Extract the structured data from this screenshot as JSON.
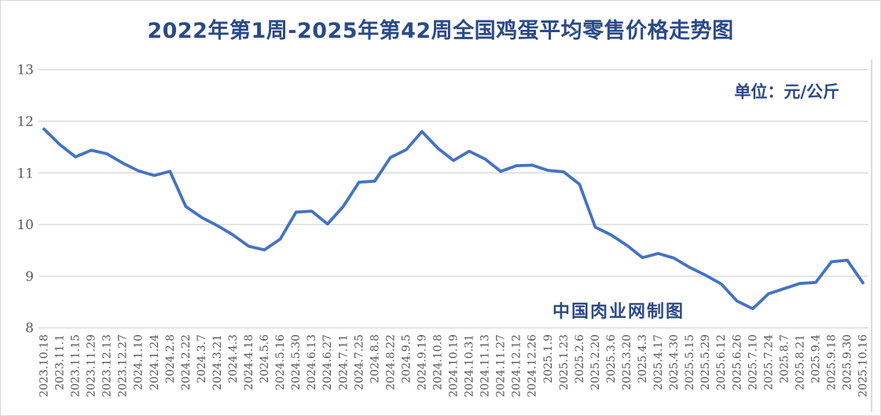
{
  "title": "2022年第1周-2025年第42周全国鸡蛋平均零售价格走势图",
  "unit_label": "单位：元/公斤",
  "watermark": "中国肉业网制图",
  "colors": {
    "line": "#4472C4",
    "title_text": "#2B4A86",
    "grid": "#D9D9D9",
    "axis_text": "#595959",
    "border": "#DCDCDC"
  },
  "chart_data": {
    "type": "line",
    "title": "2022年第1周-2025年第42周全国鸡蛋平均零售价格走势图",
    "unit": "元/公斤",
    "ylabel": "",
    "xlabel": "",
    "ylim": [
      8,
      13
    ],
    "yticks": [
      13,
      12,
      11,
      10,
      9,
      8
    ],
    "grid": "horizontal",
    "legend": "none",
    "series_name": "全国鸡蛋平均零售价格",
    "categories": [
      "2023.10.18",
      "2023.11.1",
      "2023.11.15",
      "2023.11.29",
      "2023.12.13",
      "2023.12.27",
      "2024.1.10",
      "2024.1.24",
      "2024.2.8",
      "2024.2.22",
      "2024.3.7",
      "2024.3.21",
      "2024.4.3",
      "2024.4.18",
      "2024.5.6",
      "2024.5.16",
      "2024.5.30",
      "2024.6.13",
      "2024.6.27",
      "2024.7.11",
      "2024.7.25",
      "2024.8.8",
      "2024.8.22",
      "2024.9.5",
      "2024.9.19",
      "2024.10.8",
      "2024.10.19",
      "2024.10.31",
      "2024.11.13",
      "2024.11.27",
      "2024.12.12",
      "2024.12.26",
      "2025.1.9",
      "2025.1.23",
      "2025.2.6",
      "2025.2.20",
      "2025.3.6",
      "2025.3.20",
      "2025.4.3",
      "2025.4.17",
      "2025.4.30",
      "2025.5.15",
      "2025.5.29",
      "2025.6.12",
      "2025.6.26",
      "2025.7.10",
      "2025.7.24",
      "2025.8.7",
      "2025.8.21",
      "2025.9.4",
      "2025.9.18",
      "2025.9.30",
      "2025.10.16"
    ],
    "values": [
      11.85,
      11.55,
      11.31,
      11.44,
      11.37,
      11.19,
      11.04,
      10.95,
      11.03,
      10.35,
      10.14,
      9.98,
      9.8,
      9.58,
      9.51,
      9.72,
      10.24,
      10.26,
      10.01,
      10.35,
      10.82,
      10.84,
      11.3,
      11.45,
      11.8,
      11.48,
      11.24,
      11.42,
      11.27,
      11.03,
      11.14,
      11.15,
      11.05,
      11.02,
      10.78,
      9.95,
      9.8,
      9.6,
      9.36,
      9.44,
      9.35,
      9.17,
      9.02,
      8.85,
      8.52,
      8.37,
      8.66,
      8.76,
      8.86,
      8.88,
      9.28,
      9.31,
      8.87
    ]
  }
}
